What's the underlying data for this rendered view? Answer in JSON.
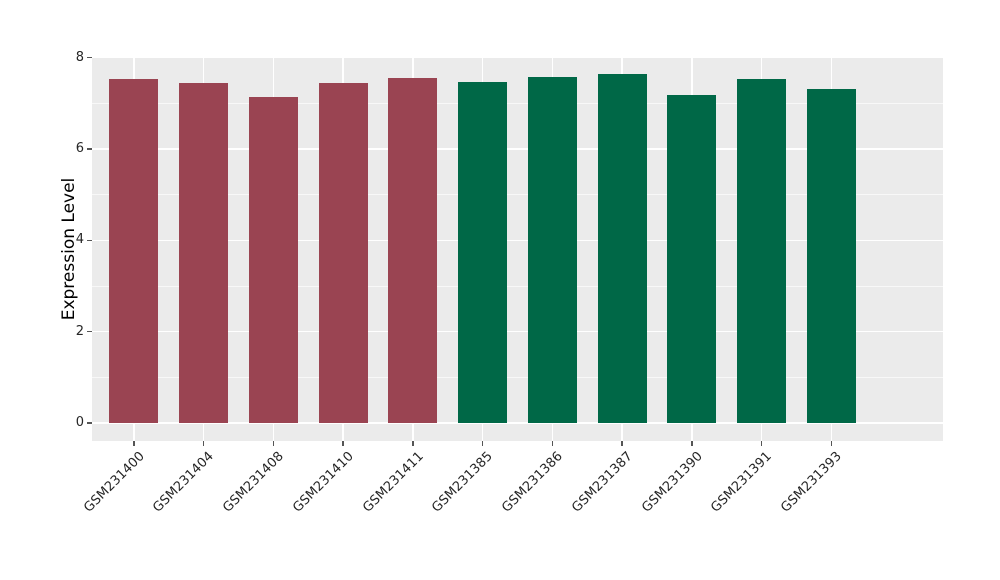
{
  "chart_data": {
    "type": "bar",
    "title": "",
    "xlabel": "",
    "ylabel": "Expression Level",
    "categories": [
      "GSM231400",
      "GSM231404",
      "GSM231408",
      "GSM231410",
      "GSM231411",
      "GSM231385",
      "GSM231386",
      "GSM231387",
      "GSM231390",
      "GSM231391",
      "GSM231393"
    ],
    "values": [
      7.53,
      7.45,
      7.14,
      7.44,
      7.55,
      7.47,
      7.58,
      7.64,
      7.19,
      7.53,
      7.31
    ],
    "bar_colors": [
      "#9a4452",
      "#9a4452",
      "#9a4452",
      "#9a4452",
      "#9a4452",
      "#006847",
      "#006847",
      "#006847",
      "#006847",
      "#006847",
      "#006847"
    ],
    "groups": [
      {
        "name": "maroon-group",
        "color": "#9a4452",
        "categories": [
          "GSM231400",
          "GSM231404",
          "GSM231408",
          "GSM231410",
          "GSM231411"
        ]
      },
      {
        "name": "green-group",
        "color": "#006847",
        "categories": [
          "GSM231385",
          "GSM231386",
          "GSM231387",
          "GSM231390",
          "GSM231391",
          "GSM231393"
        ]
      }
    ],
    "ylim": [
      0,
      8
    ],
    "yticks": [
      0,
      2,
      4,
      6,
      8
    ],
    "minor_gridlines": [
      1,
      3,
      5,
      7
    ],
    "grid": true,
    "legend": "none",
    "panel_background": "#ebebeb",
    "figure_background": "#ffffff",
    "gridline_color": "#ffffff",
    "tick_color": "#555555",
    "text_color": "#262626"
  }
}
